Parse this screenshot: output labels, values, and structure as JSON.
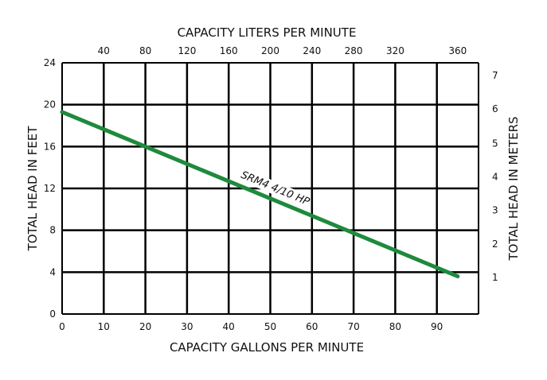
{
  "chart_data": {
    "type": "line",
    "xlabel": "CAPACITY GALLONS PER MINUTE",
    "x2label": "CAPACITY LITERS PER MINUTE",
    "ylabel": "TOTAL HEAD IN FEET",
    "y2label": "TOTAL HEAD IN METERS",
    "xlim": [
      0,
      100
    ],
    "ylim": [
      0,
      24
    ],
    "x_ticks": [
      "0",
      "10",
      "20",
      "30",
      "40",
      "50",
      "60",
      "70",
      "80",
      "90"
    ],
    "y_ticks": [
      "0",
      "4",
      "8",
      "12",
      "16",
      "20",
      "24"
    ],
    "x2_ticks": [
      {
        "label": "40",
        "gpm": 10
      },
      {
        "label": "80",
        "gpm": 20
      },
      {
        "label": "120",
        "gpm": 30
      },
      {
        "label": "160",
        "gpm": 40
      },
      {
        "label": "200",
        "gpm": 50
      },
      {
        "label": "240",
        "gpm": 60
      },
      {
        "label": "280",
        "gpm": 70
      },
      {
        "label": "320",
        "gpm": 80
      },
      {
        "label": "360",
        "gpm": 95
      }
    ],
    "y2_ticks": [
      {
        "label": "1",
        "feet": 3.5
      },
      {
        "label": "2",
        "feet": 6.7
      },
      {
        "label": "3",
        "feet": 9.9
      },
      {
        "label": "4",
        "feet": 13.1
      },
      {
        "label": "5",
        "feet": 16.3
      },
      {
        "label": "6",
        "feet": 19.6
      },
      {
        "label": "7",
        "feet": 22.8
      }
    ],
    "series": [
      {
        "name": "SRM4 4/10 HP",
        "color": "#1e8a3c",
        "x": [
          0,
          95
        ],
        "y": [
          19.3,
          3.6
        ]
      }
    ],
    "grid": true
  }
}
